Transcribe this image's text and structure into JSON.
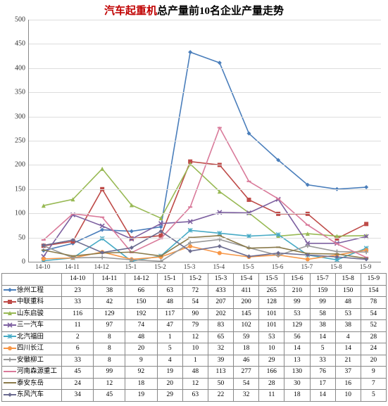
{
  "title_prefix": "汽车起重机",
  "title_rest": "总产量前10名企业产量走势",
  "title_fontsize": 15,
  "chart": {
    "type": "line",
    "categories": [
      "14-10",
      "14-11",
      "14-12",
      "15-1",
      "15-2",
      "15-3",
      "15-4",
      "15-5",
      "15-6",
      "15-7",
      "15-8",
      "15-9"
    ],
    "ylim": [
      0,
      500
    ],
    "ytick_step": 50,
    "background": "#ffffff",
    "grid_color": "#dddddd",
    "axis_color": "#888888",
    "line_width": 1.6,
    "marker_size": 6,
    "series": [
      {
        "name": "徐州工程",
        "color": "#4a7ebb",
        "marker": "diamond",
        "values": [
          23,
          38,
          66,
          63,
          72,
          433,
          411,
          265,
          210,
          159,
          150,
          154
        ]
      },
      {
        "name": "中联重科",
        "color": "#be4b48",
        "marker": "square",
        "values": [
          33,
          42,
          150,
          48,
          54,
          207,
          200,
          128,
          99,
          99,
          48,
          78
        ]
      },
      {
        "name": "山东启骏",
        "color": "#98b954",
        "marker": "triangle",
        "values": [
          116,
          129,
          192,
          117,
          90,
          202,
          145,
          101,
          53,
          58,
          53,
          54
        ]
      },
      {
        "name": "三一汽车",
        "color": "#7d60a0",
        "marker": "x",
        "values": [
          11,
          97,
          74,
          47,
          79,
          83,
          102,
          101,
          129,
          38,
          38,
          52
        ]
      },
      {
        "name": "北汽福田",
        "color": "#46aac5",
        "marker": "star",
        "values": [
          2,
          8,
          48,
          1,
          12,
          65,
          59,
          53,
          56,
          14,
          4,
          28
        ]
      },
      {
        "name": "四川长江",
        "color": "#f79646",
        "marker": "circle",
        "values": [
          6,
          8,
          20,
          5,
          10,
          32,
          18,
          10,
          14,
          5,
          14,
          24
        ]
      },
      {
        "name": "安徽柳工",
        "color": "#999999",
        "marker": "plus",
        "values": [
          33,
          8,
          9,
          4,
          1,
          39,
          46,
          29,
          13,
          33,
          21,
          20
        ]
      },
      {
        "name": "河南森源重工",
        "color": "#d97a9a",
        "marker": "dash",
        "values": [
          45,
          99,
          92,
          19,
          48,
          113,
          277,
          166,
          130,
          76,
          37,
          9
        ]
      },
      {
        "name": "泰安东岳",
        "color": "#8a7a4a",
        "marker": "dash",
        "values": [
          24,
          12,
          18,
          20,
          12,
          50,
          54,
          28,
          30,
          17,
          16,
          7
        ]
      },
      {
        "name": "东风汽车",
        "color": "#6b6b8f",
        "marker": "diamond",
        "values": [
          34,
          45,
          19,
          29,
          63,
          22,
          32,
          11,
          18,
          14,
          10,
          5
        ]
      }
    ]
  }
}
